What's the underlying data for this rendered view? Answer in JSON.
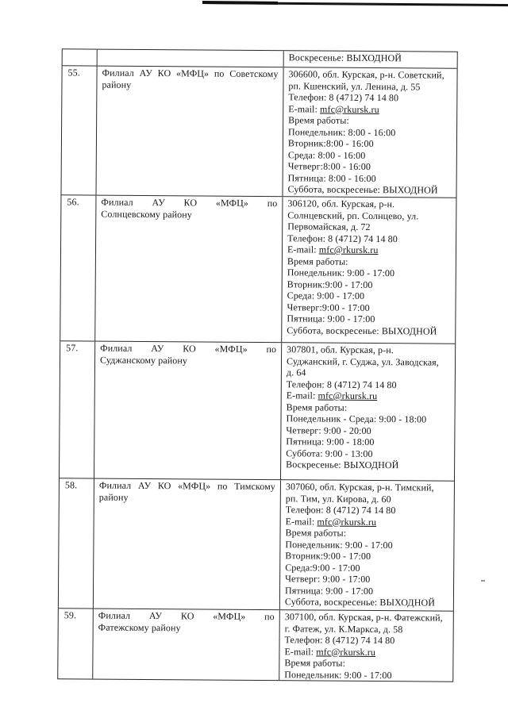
{
  "document": {
    "kind": "scanned-table-page",
    "text_color": "#171717",
    "background_color": "#ffffff",
    "table": {
      "continued_row": {
        "col3_lines": [
          "Воскресенье: ВЫХОДНОЙ"
        ]
      },
      "rows": [
        {
          "num": "55.",
          "name_line1": "Филиал АУ КО «МФЦ» по Советскому",
          "name_line2": "району",
          "address_lines": [
            "306600, обл. Курская, р-н. Советский,",
            "рп. Кшенский, ул. Ленина, д. 55"
          ],
          "phone": "Телефон: 8 (4712) 74 14 80",
          "email_label": "E-mail:",
          "email": "mfc@rkursk.ru",
          "hours_label": "Время работы:",
          "hours": [
            "Понедельник: 8:00 - 16:00",
            "Вторник:8:00 - 16:00",
            "Среда: 8:00 - 16:00",
            "Четверг:8:00 - 16:00",
            "Пятница: 8:00 - 16:00",
            "Суббота, воскресенье: ВЫХОДНОЙ"
          ]
        },
        {
          "num": "56.",
          "name_line1": "Филиал АУ КО «МФЦ» по",
          "name_line2": "Солнцевскому району",
          "address_lines": [
            "306120, обл. Курская, р-н.",
            "Солнцевский, рп. Солнцево, ул.",
            "Первомайская, д. 72"
          ],
          "phone": "Телефон: 8 (4712) 74 14 80",
          "email_label": "E-mail:",
          "email": "mfc@rkursk.ru",
          "hours_label": "Время работы:",
          "hours": [
            "Понедельник: 9:00 - 17:00",
            "Вторник:9:00 - 17:00",
            "Среда: 9:00 - 17:00",
            "Четверг:9:00 - 17:00",
            "Пятница: 9:00 - 17:00",
            "Суббота, воскресенье: ВЫХОДНОЙ"
          ]
        },
        {
          "num": "57.",
          "name_line1": "Филиал АУ КО «МФЦ» по",
          "name_line2": "Суджанскому району",
          "address_lines": [
            "307801, обл. Курская, р-н.",
            "Суджанский, г. Суджа, ул. Заводская,",
            "д. 64"
          ],
          "phone": "Телефон: 8 (4712) 74 14 80",
          "email_label": "E-mail:",
          "email": "mfc@rkursk.ru",
          "hours_label": "Время работы:",
          "hours": [
            "Понедельник - Среда: 9:00 - 18:00",
            "Четверг: 9:00 - 20:00",
            "Пятница: 9:00 - 18:00",
            "Суббота: 9:00 - 13:00",
            "Воскресенье: ВЫХОДНОЙ"
          ]
        },
        {
          "num": "58.",
          "name_line1": "Филиал АУ КО «МФЦ» по Тимскому",
          "name_line2": "району",
          "address_lines": [
            "307060, обл. Курская, р-н. Тимский,",
            "рп. Тим, ул. Кирова, д. 60"
          ],
          "phone": "Телефон: 8 (4712) 74 14 80",
          "email_label": "E-mail:",
          "email": "mfc@rkursk.ru",
          "hours_label": "Время работы:",
          "hours": [
            "Понедельник: 9:00 - 17:00",
            "Вторник:9:00 - 17:00",
            "Среда:9:00 - 17:00",
            "Четверг: 9:00 - 17:00",
            "Пятница: 9:00 - 17:00",
            "Суббота, воскресенье: ВЫХОДНОЙ"
          ]
        },
        {
          "num": "59.",
          "name_line1": "Филиал АУ КО «МФЦ» по",
          "name_line2": "Фатежскому району",
          "address_lines": [
            "307100, обл. Курская, р-н. Фатежский,",
            "г. Фатеж, ул. К.Маркса, д. 58"
          ],
          "phone": "Телефон: 8 (4712) 74 14 80",
          "email_label": "E-mail:",
          "email": "mfc@rkursk.ru",
          "hours_label": "Время работы:",
          "hours": [
            "Понедельник: 9:00 - 17:00"
          ]
        }
      ]
    }
  }
}
